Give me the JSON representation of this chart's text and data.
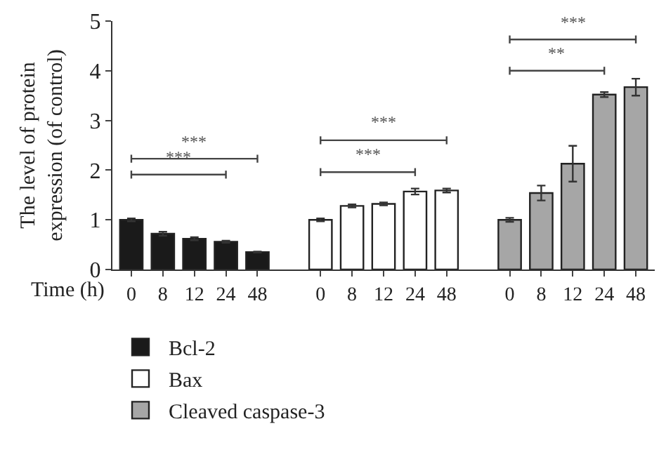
{
  "chart_data": {
    "type": "bar",
    "ylabel": "The level of protein expression (of control)",
    "xlabel": "Time (h)",
    "categories": [
      "0",
      "8",
      "12",
      "24",
      "48",
      null,
      "0",
      "8",
      "12",
      "24",
      "48",
      null,
      "0",
      "8",
      "12",
      "24",
      "48"
    ],
    "series": [
      {
        "name": "Bcl-2",
        "color": "#1a1a1a",
        "values": [
          1.0,
          0.72,
          0.62,
          0.56,
          0.35,
          null,
          null,
          null,
          null,
          null,
          null,
          null,
          null,
          null,
          null,
          null,
          null
        ],
        "errors": [
          0.03,
          0.04,
          0.03,
          0.02,
          0.01,
          null,
          null,
          null,
          null,
          null,
          null,
          null,
          null,
          null,
          null,
          null,
          null
        ]
      },
      {
        "name": "Bax",
        "color": "#ffffff",
        "values": [
          null,
          null,
          null,
          null,
          null,
          null,
          1.0,
          1.28,
          1.32,
          1.57,
          1.59,
          null,
          null,
          null,
          null,
          null,
          null
        ],
        "errors": [
          null,
          null,
          null,
          null,
          null,
          null,
          0.03,
          0.03,
          0.03,
          0.06,
          0.04,
          null,
          null,
          null,
          null,
          null,
          null
        ]
      },
      {
        "name": "Cleaved caspase-3",
        "color": "#a6a6a6",
        "values": [
          null,
          null,
          null,
          null,
          null,
          null,
          null,
          null,
          null,
          null,
          null,
          null,
          1.0,
          1.54,
          2.13,
          3.52,
          3.67
        ],
        "errors": [
          null,
          null,
          null,
          null,
          null,
          null,
          null,
          null,
          null,
          null,
          null,
          null,
          0.04,
          0.15,
          0.36,
          0.05,
          0.17
        ]
      }
    ],
    "ylim": [
      0,
      5
    ],
    "yticks": [
      0,
      1,
      2,
      3,
      4,
      5
    ],
    "legend": "bottom left",
    "annotations": [
      "***",
      "***",
      "***",
      "***",
      "***",
      "**"
    ]
  }
}
